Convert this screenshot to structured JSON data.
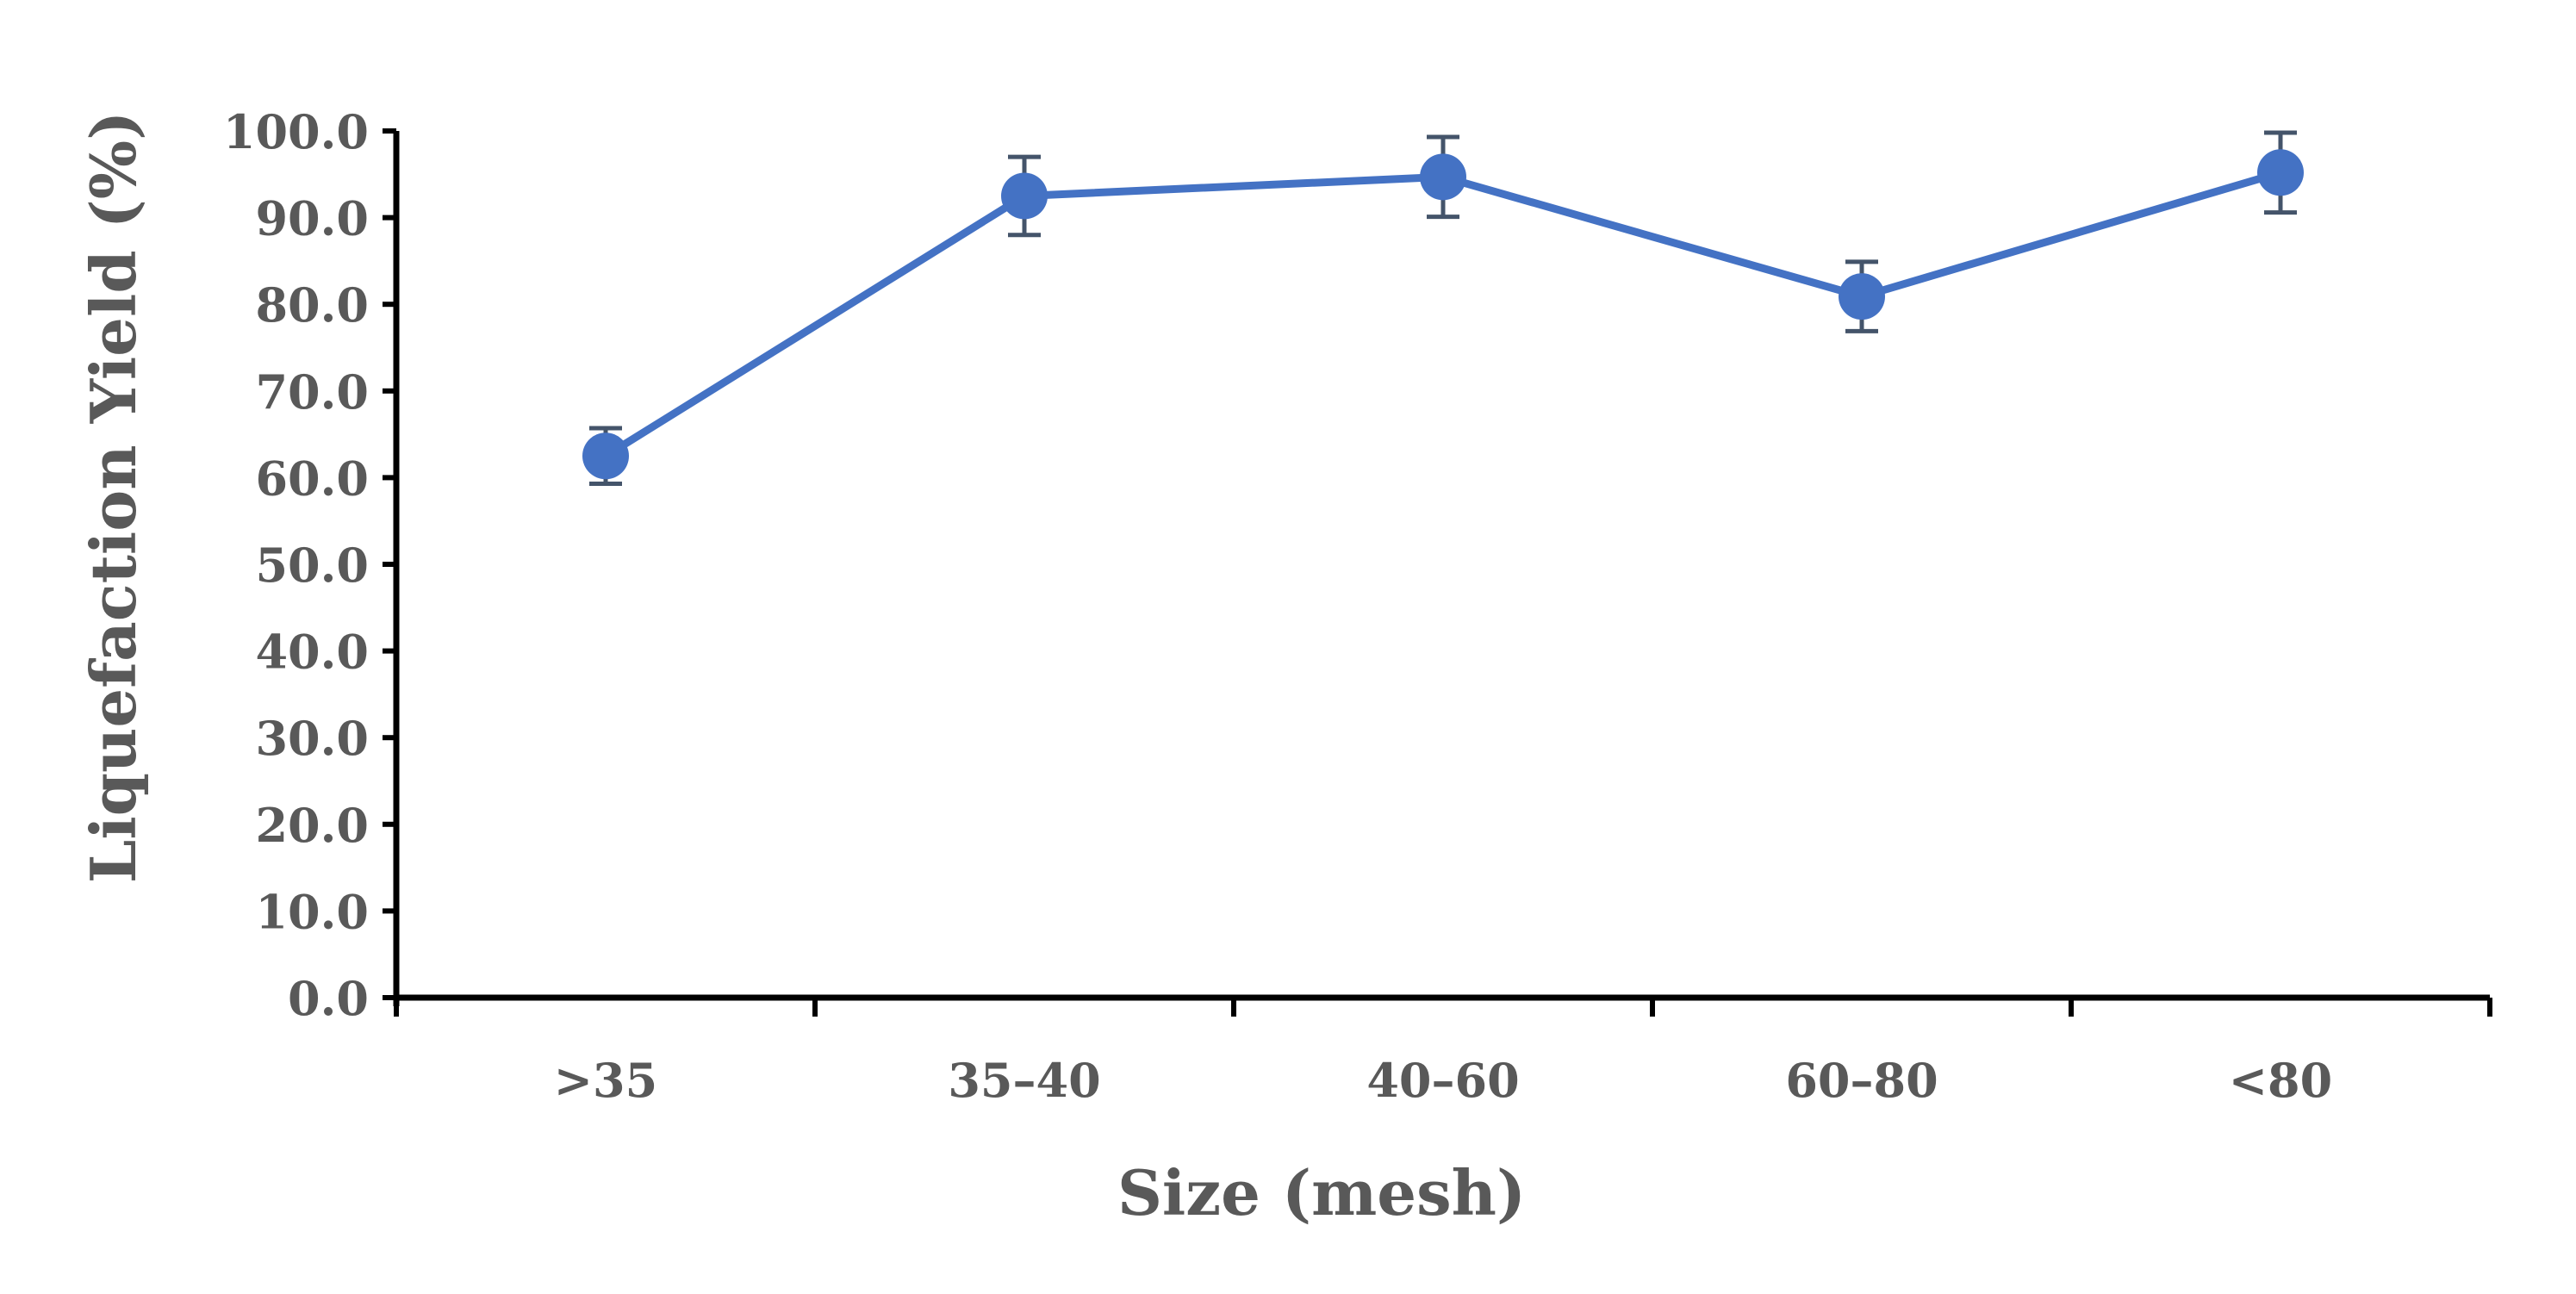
{
  "chart_data": {
    "type": "line",
    "title": "",
    "xlabel": "Size (mesh)",
    "ylabel": "Liquefaction Yield (%)",
    "categories": [
      ">35",
      "35–40",
      "40–60",
      "60–80",
      "<80"
    ],
    "series": [
      {
        "values": [
          62.5,
          92.5,
          94.7,
          80.9,
          95.2
        ],
        "error": [
          3.2,
          4.5,
          4.6,
          4.0,
          4.6
        ],
        "color": "#4472C4"
      }
    ],
    "ylim": [
      0,
      100
    ],
    "yticks": [
      "0.0",
      "10.0",
      "20.0",
      "30.0",
      "40.0",
      "50.0",
      "60.0",
      "70.0",
      "80.0",
      "90.0",
      "100.0"
    ],
    "grid": false,
    "legend": "none"
  },
  "colors": {
    "line": "#4472C4",
    "error_bar": "#44546A",
    "axis": "#000000",
    "text": "#595959"
  }
}
